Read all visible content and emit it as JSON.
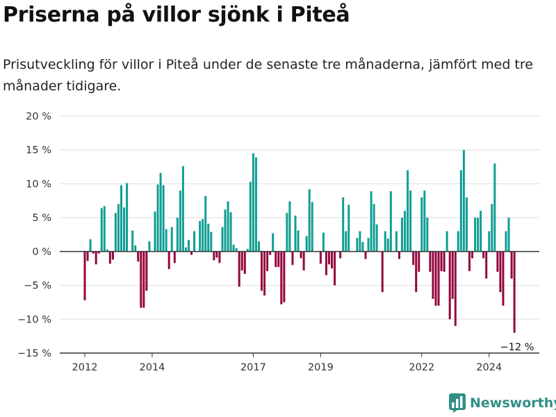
{
  "header": {
    "title": "Priserna på villor sjönk i Piteå",
    "subtitle": "Prisutveckling för villor i Piteå under de senaste tre månaderna, jämfört med tre månader tidigare."
  },
  "brand": {
    "name": "Newsworthy",
    "icon": "bar-chart-logo-icon",
    "color": "#2f8f87"
  },
  "colors": {
    "positive": "#0f9e93",
    "negative": "#93063d",
    "grid": "#dddddd",
    "axis": "#333333"
  },
  "chart_data": {
    "type": "bar",
    "title": "Priserna på villor sjönk i Piteå",
    "subtitle": "Prisutveckling för villor i Piteå under de senaste tre månaderna, jämfört med tre månader tidigare.",
    "xlabel": "",
    "ylabel": "",
    "ylim": [
      -15,
      20
    ],
    "yticks": [
      {
        "value": 20,
        "label": "20 %"
      },
      {
        "value": 15,
        "label": "15 %"
      },
      {
        "value": 10,
        "label": "10 %"
      },
      {
        "value": 5,
        "label": "5 %"
      },
      {
        "value": 0,
        "label": "0 %"
      },
      {
        "value": -5,
        "label": "−5 %"
      },
      {
        "value": -10,
        "label": "−10 %"
      },
      {
        "value": -15,
        "label": "−15 %"
      }
    ],
    "xticks": [
      {
        "year": 2012,
        "label": "2012"
      },
      {
        "year": 2014,
        "label": "2014"
      },
      {
        "year": 2017,
        "label": "2017"
      },
      {
        "year": 2019,
        "label": "2019"
      },
      {
        "year": 2022,
        "label": "2022"
      },
      {
        "year": 2024,
        "label": "2024"
      }
    ],
    "x_start": "2012-01",
    "frequency": "monthly",
    "grid": true,
    "legend": "none",
    "unit": "%",
    "annotation": {
      "label": "−12 %",
      "value": -12
    },
    "values": [
      -7.2,
      -1.4,
      1.8,
      -0.3,
      -1.9,
      -0.3,
      6.4,
      6.7,
      0.3,
      -1.8,
      -1.2,
      5.7,
      7.0,
      9.8,
      6.5,
      10.1,
      0,
      3.1,
      0.9,
      -1.5,
      -8.3,
      -8.3,
      -5.8,
      1.5,
      0,
      5.9,
      9.9,
      11.6,
      9.8,
      3.3,
      -2.6,
      3.6,
      -1.7,
      5.0,
      9.0,
      12.6,
      0.6,
      1.7,
      -0.5,
      3.0,
      0,
      4.5,
      4.8,
      8.2,
      4.1,
      2.9,
      -1.3,
      -0.9,
      -1.7,
      3.6,
      6.2,
      7.4,
      5.8,
      1.0,
      0.5,
      -5.2,
      -2.8,
      -3.3,
      0.4,
      10.3,
      14.5,
      13.9,
      1.5,
      -5.8,
      -6.5,
      -2.9,
      -0.5,
      2.7,
      -2.3,
      -2.3,
      -7.8,
      -7.5,
      5.7,
      7.4,
      -2.0,
      5.3,
      3.1,
      -1.0,
      -2.8,
      2.3,
      9.2,
      7.3,
      0,
      0,
      -1.8,
      2.8,
      -3.5,
      -1.9,
      -2.5,
      -5.0,
      0,
      -1.0,
      8.0,
      3.0,
      6.9,
      0,
      0,
      2.0,
      3.0,
      1.4,
      -1.1,
      2.0,
      8.9,
      7.0,
      4.0,
      0,
      -6.0,
      3.0,
      1.9,
      8.9,
      0,
      3.0,
      -1.1,
      5.0,
      6.0,
      12.0,
      9.0,
      -2.0,
      -6.0,
      -3.0,
      8.0,
      9.0,
      5.0,
      -3.0,
      -7.0,
      -8.0,
      -8.0,
      -2.9,
      -3.0,
      3.0,
      -10.0,
      -7.0,
      -11.0,
      3.0,
      12.0,
      15.0,
      8.0,
      -2.9,
      -1.0,
      5.0,
      5.0,
      6.0,
      -1.0,
      -4.0,
      3.0,
      7.0,
      13.0,
      -3.0,
      -6.0,
      -8.0,
      3.0,
      5.0,
      -4.0,
      -12.0
    ]
  }
}
